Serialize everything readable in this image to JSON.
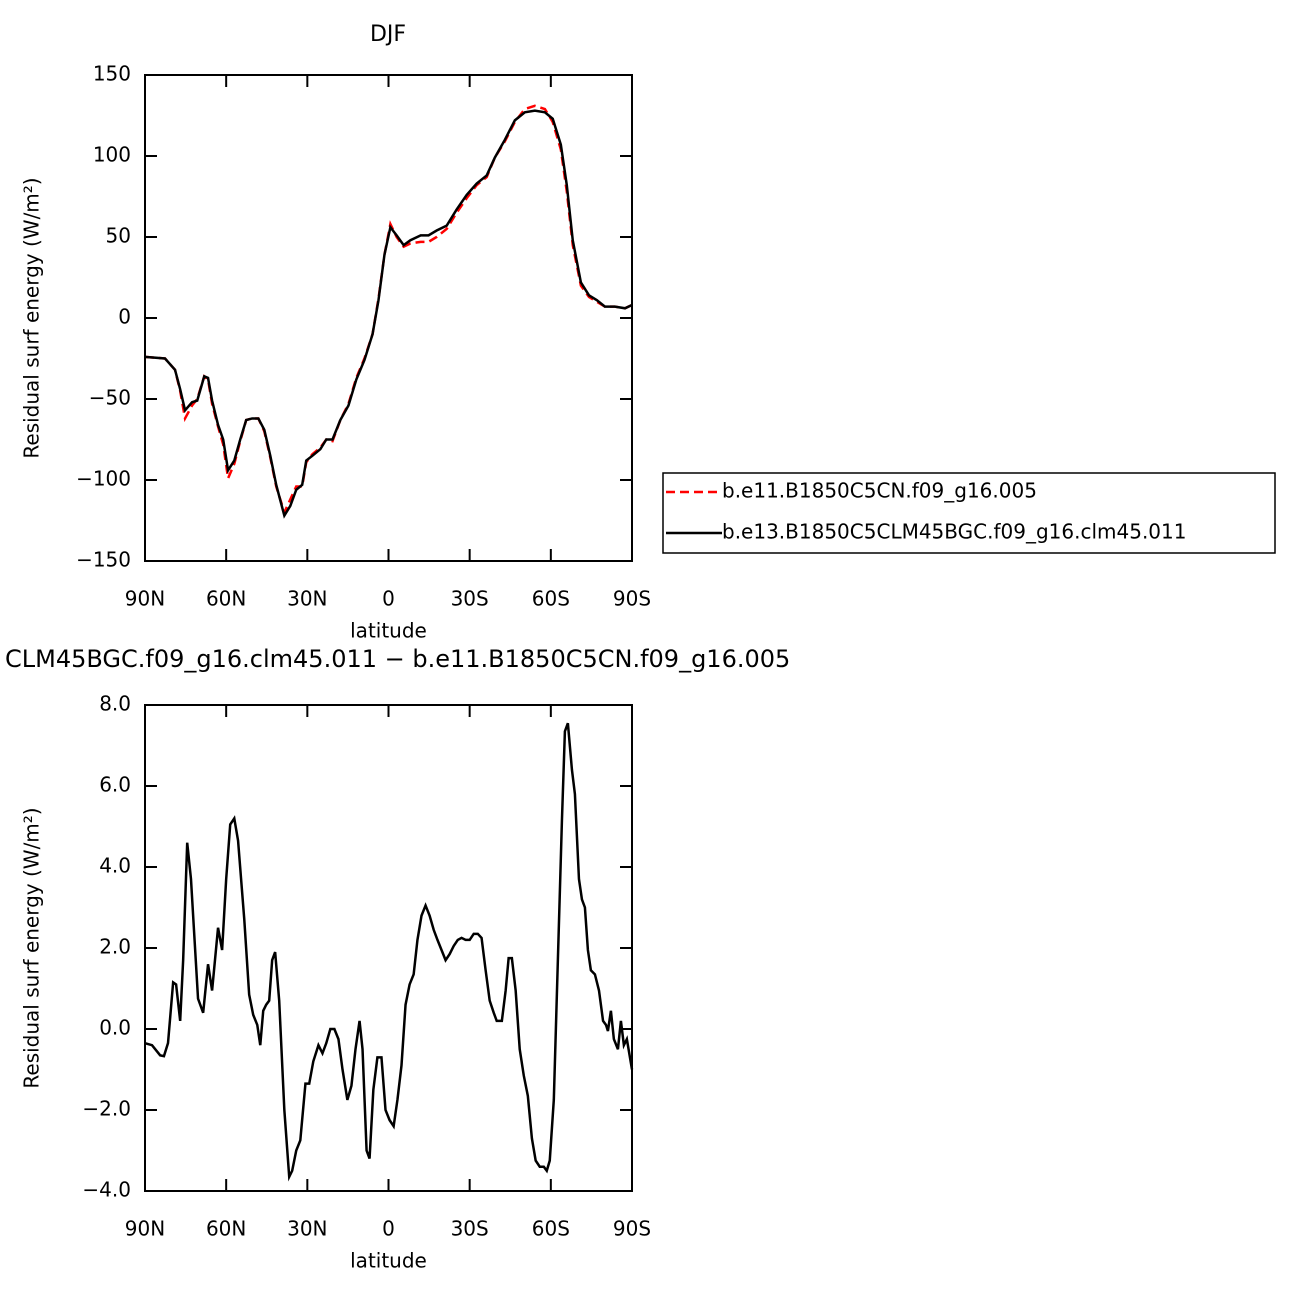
{
  "chart_data": [
    {
      "type": "line",
      "title": "DJF",
      "x_label": "latitude",
      "y_label": "Residual surf energy (W/m²)",
      "x": [
        90,
        82.6,
        78.9,
        77,
        75.2,
        72.6,
        70.7,
        68.1,
        66.7,
        65.2,
        63,
        61.1,
        59.3,
        57,
        54.8,
        52.6,
        50.4,
        48.1,
        45.9,
        43.7,
        41.5,
        38.5,
        36.3,
        34.1,
        31.9,
        30.4,
        28.1,
        25.2,
        23,
        20.7,
        17.8,
        14.8,
        11.9,
        8.9,
        5.9,
        3.7,
        1.5,
        -0.7,
        -3,
        -5.6,
        -8.1,
        -11.9,
        -14.8,
        -17.8,
        -21.5,
        -25.2,
        -28.9,
        -32.6,
        -36.3,
        -39.3,
        -43,
        -46.7,
        -50.4,
        -54.1,
        -57.8,
        -60.7,
        -63.7,
        -65.9,
        -68.1,
        -71.1,
        -74.1,
        -77,
        -80,
        -83.7,
        -87.4,
        -90
      ],
      "series": [
        {
          "name": "b.e11.B1850C5CN.f09_g16.005",
          "color": "#ff0000",
          "line_style": "dashed",
          "values": [
            -24,
            -25,
            -32,
            -45,
            -62,
            -54,
            -50,
            -36,
            -38,
            -53,
            -67,
            -78,
            -99,
            -90,
            -76,
            -63,
            -62,
            -62,
            -70,
            -86,
            -104,
            -120,
            -112,
            -104,
            -104,
            -89,
            -84,
            -80,
            -75,
            -76,
            -63,
            -53,
            -37,
            -25,
            -10,
            12,
            39,
            58,
            50,
            44,
            46,
            47,
            47,
            50,
            55,
            65,
            74,
            82,
            87,
            99,
            109,
            121,
            129,
            131,
            129,
            121,
            104,
            78,
            45,
            20,
            13,
            10,
            7,
            7,
            6,
            8
          ]
        },
        {
          "name": "b.e13.B1850C5CLM45BGC.f09_g16.clm45.011",
          "color": "#000000",
          "line_style": "solid",
          "values": [
            -24,
            -25,
            -32,
            -44,
            -57,
            -52,
            -51,
            -36,
            -37,
            -51,
            -66,
            -75,
            -94,
            -88,
            -75,
            -63,
            -62,
            -62,
            -69,
            -85,
            -103,
            -122,
            -116,
            -106,
            -103,
            -88,
            -85,
            -81,
            -75,
            -75,
            -63,
            -54,
            -38,
            -26,
            -10,
            11,
            39,
            56,
            51,
            45,
            48,
            51,
            51,
            54,
            57,
            67,
            76,
            83,
            88,
            99,
            110,
            122,
            127,
            128,
            127,
            123,
            107,
            82,
            48,
            22,
            14,
            11,
            7,
            7,
            6,
            8
          ]
        }
      ],
      "xlim": [
        90,
        -90
      ],
      "xticks": [
        {
          "value": 90,
          "label": "90N"
        },
        {
          "value": 60,
          "label": "60N"
        },
        {
          "value": 30,
          "label": "30N"
        },
        0,
        {
          "value": -30,
          "label": "30S"
        },
        {
          "value": -60,
          "label": "60S"
        },
        {
          "value": -90,
          "label": "90S"
        }
      ],
      "ylim": [
        -150,
        150
      ],
      "yticks": [
        {
          "value": -150,
          "label": "−150"
        },
        {
          "value": -100,
          "label": "−100"
        },
        {
          "value": -50,
          "label": "−50"
        },
        0,
        50,
        100,
        150
      ],
      "legend": "right"
    },
    {
      "type": "line",
      "title": "CLM45BGC.f09_g16.clm45.011 − b.e11.B1850C5CN.f09_g16.005",
      "x_label": "latitude",
      "y_label": "Residual surf energy (W/m²)",
      "x": [
        90,
        87.4,
        84.4,
        83.0,
        81.5,
        79.6,
        78.5,
        77.0,
        75.9,
        74.4,
        73.0,
        71.9,
        70.4,
        68.5,
        66.7,
        65.2,
        63.0,
        61.5,
        60.0,
        58.5,
        57.0,
        55.6,
        53.3,
        51.5,
        50.0,
        48.5,
        47.4,
        46.3,
        45.2,
        44.1,
        43.0,
        41.9,
        40.4,
        38.5,
        36.7,
        35.6,
        34.1,
        32.6,
        30.7,
        29.3,
        27.8,
        25.9,
        24.4,
        23.0,
        21.5,
        20.0,
        18.5,
        17.0,
        15.2,
        13.7,
        12.2,
        10.7,
        9.6,
        8.1,
        7.0,
        5.6,
        4.1,
        2.6,
        1.1,
        -0.4,
        -1.9,
        -3.3,
        -4.8,
        -6.3,
        -7.8,
        -9.3,
        -10.7,
        -12.2,
        -13.7,
        -15.2,
        -16.7,
        -18.1,
        -19.6,
        -21.1,
        -22.6,
        -24.1,
        -25.6,
        -27.0,
        -28.5,
        -30.0,
        -31.5,
        -33.0,
        -34.4,
        -35.9,
        -37.4,
        -38.9,
        -40.0,
        -41.9,
        -43.3,
        -44.4,
        -45.6,
        -47.0,
        -48.5,
        -50.0,
        -51.5,
        -53.0,
        -54.4,
        -55.9,
        -57.4,
        -58.5,
        -59.6,
        -61.1,
        -62.6,
        -64.1,
        -65.2,
        -66.3,
        -67.8,
        -68.9,
        -70.4,
        -71.5,
        -72.6,
        -73.7,
        -74.8,
        -76.3,
        -77.8,
        -79.3,
        -80.4,
        -81.1,
        -82.2,
        -83.3,
        -84.8,
        -85.9,
        -87.0,
        -88.1,
        -90
      ],
      "values": [
        -0.35,
        -0.4,
        -0.65,
        -0.67,
        -0.35,
        1.15,
        1.1,
        0.2,
        1.7,
        4.6,
        3.7,
        2.45,
        0.75,
        0.4,
        1.6,
        0.95,
        2.5,
        1.95,
        3.7,
        5.05,
        5.2,
        4.65,
        2.7,
        0.85,
        0.35,
        0.1,
        -0.4,
        0.45,
        0.6,
        0.7,
        1.7,
        1.9,
        0.7,
        -2.0,
        -3.65,
        -3.5,
        -3.0,
        -2.75,
        -1.35,
        -1.35,
        -0.8,
        -0.4,
        -0.6,
        -0.35,
        0.0,
        0.0,
        -0.25,
        -1.0,
        -1.75,
        -1.4,
        -0.5,
        0.2,
        -0.5,
        -3.0,
        -3.2,
        -1.5,
        -0.7,
        -0.7,
        -2.0,
        -2.25,
        -2.4,
        -1.75,
        -0.9,
        0.6,
        1.1,
        1.35,
        2.2,
        2.8,
        3.05,
        2.8,
        2.45,
        2.2,
        1.95,
        1.7,
        1.85,
        2.05,
        2.2,
        2.25,
        2.2,
        2.2,
        2.35,
        2.35,
        2.25,
        1.45,
        0.7,
        0.4,
        0.2,
        0.2,
        0.95,
        1.75,
        1.75,
        0.95,
        -0.5,
        -1.15,
        -1.65,
        -2.7,
        -3.25,
        -3.4,
        -3.4,
        -3.5,
        -3.25,
        -1.75,
        1.7,
        5.15,
        7.35,
        7.55,
        6.4,
        5.8,
        3.7,
        3.2,
        3.0,
        1.95,
        1.45,
        1.35,
        0.95,
        0.2,
        0.1,
        -0.05,
        0.45,
        -0.25,
        -0.5,
        0.2,
        -0.4,
        -0.25,
        -1.0
      ],
      "color": "#000000",
      "xlim": [
        90,
        -90
      ],
      "xticks": [
        {
          "value": 90,
          "label": "90N"
        },
        {
          "value": 60,
          "label": "60N"
        },
        {
          "value": 30,
          "label": "30N"
        },
        0,
        {
          "value": -30,
          "label": "30S"
        },
        {
          "value": -60,
          "label": "60S"
        },
        {
          "value": -90,
          "label": "90S"
        }
      ],
      "ylim": [
        -4,
        8
      ],
      "yticks": [
        {
          "value": -4,
          "label": "−4.0"
        },
        {
          "value": -2,
          "label": "−2.0"
        },
        {
          "value": 0,
          "label": "0.0"
        },
        {
          "value": 2,
          "label": "2.0"
        },
        {
          "value": 4,
          "label": "4.0"
        },
        {
          "value": 6,
          "label": "6.0"
        },
        {
          "value": 8,
          "label": "8.0"
        }
      ]
    }
  ]
}
